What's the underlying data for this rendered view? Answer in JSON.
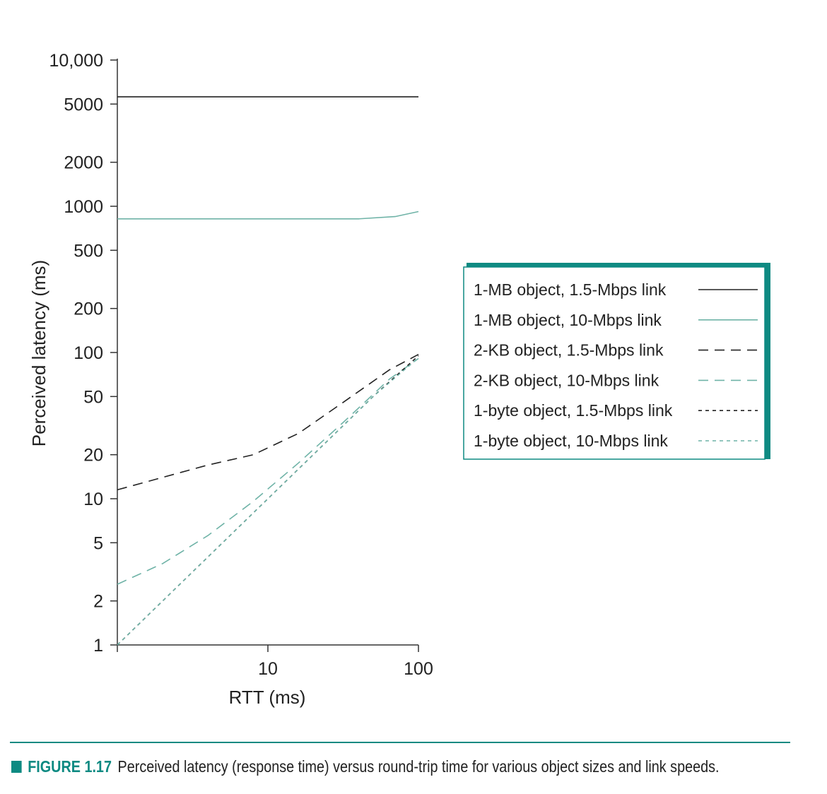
{
  "chart_data": {
    "type": "line",
    "xlabel": "RTT (ms)",
    "ylabel": "Perceived latency (ms)",
    "x_scale": "log",
    "y_scale": "log",
    "xlim": [
      1,
      100
    ],
    "ylim": [
      1,
      10000
    ],
    "x_ticks": [
      {
        "value": 1,
        "label": ""
      },
      {
        "value": 10,
        "label": "10"
      },
      {
        "value": 100,
        "label": "100"
      }
    ],
    "y_ticks": [
      {
        "value": 1,
        "label": "1"
      },
      {
        "value": 2,
        "label": "2"
      },
      {
        "value": 5,
        "label": "5"
      },
      {
        "value": 10,
        "label": "10"
      },
      {
        "value": 20,
        "label": "20"
      },
      {
        "value": 50,
        "label": "50"
      },
      {
        "value": 100,
        "label": "100"
      },
      {
        "value": 200,
        "label": "200"
      },
      {
        "value": 500,
        "label": "500"
      },
      {
        "value": 1000,
        "label": "1000"
      },
      {
        "value": 2000,
        "label": "2000"
      },
      {
        "value": 5000,
        "label": "5000"
      },
      {
        "value": 10000,
        "label": "10,000"
      }
    ],
    "legend_position": "right",
    "series": [
      {
        "name": "1-MB object, 1.5-Mbps link",
        "color": "#222222",
        "dash": "solid",
        "x": [
          1,
          100
        ],
        "y": [
          5600,
          5600
        ]
      },
      {
        "name": "1-MB object, 10-Mbps link",
        "color": "#6fb3a7",
        "dash": "solid",
        "x": [
          1,
          10,
          40,
          70,
          100
        ],
        "y": [
          820,
          820,
          820,
          850,
          920
        ]
      },
      {
        "name": "2-KB object, 1.5-Mbps link",
        "color": "#222222",
        "dash": "long",
        "x": [
          1,
          2,
          4,
          8,
          16,
          32,
          64,
          100
        ],
        "y": [
          11.5,
          14,
          17,
          20,
          28,
          46,
          76,
          97
        ]
      },
      {
        "name": "2-KB object, 10-Mbps link",
        "color": "#6fb3a7",
        "dash": "long",
        "x": [
          1,
          2,
          4,
          8,
          16,
          32,
          64,
          100
        ],
        "y": [
          2.6,
          3.6,
          5.6,
          9.6,
          17.6,
          33.6,
          65.6,
          91
        ]
      },
      {
        "name": "1-byte object, 1.5-Mbps link",
        "color": "#222222",
        "dash": "short",
        "x": [
          1,
          2,
          5,
          10,
          20,
          50,
          100
        ],
        "y": [
          1,
          2,
          5,
          10,
          20,
          50,
          95
        ]
      },
      {
        "name": "1-byte object, 10-Mbps link",
        "color": "#6fb3a7",
        "dash": "short",
        "x": [
          1,
          2,
          5,
          10,
          20,
          50,
          100
        ],
        "y": [
          1,
          2,
          5,
          10,
          20,
          50,
          92
        ]
      }
    ]
  },
  "caption": {
    "figure_label": "FIGURE 1.17",
    "text": "Perceived latency (response time) versus round-trip time for various object sizes and link speeds."
  },
  "colors": {
    "accent": "#0e8a82",
    "teal_series": "#6fb3a7",
    "black_series": "#222222"
  }
}
